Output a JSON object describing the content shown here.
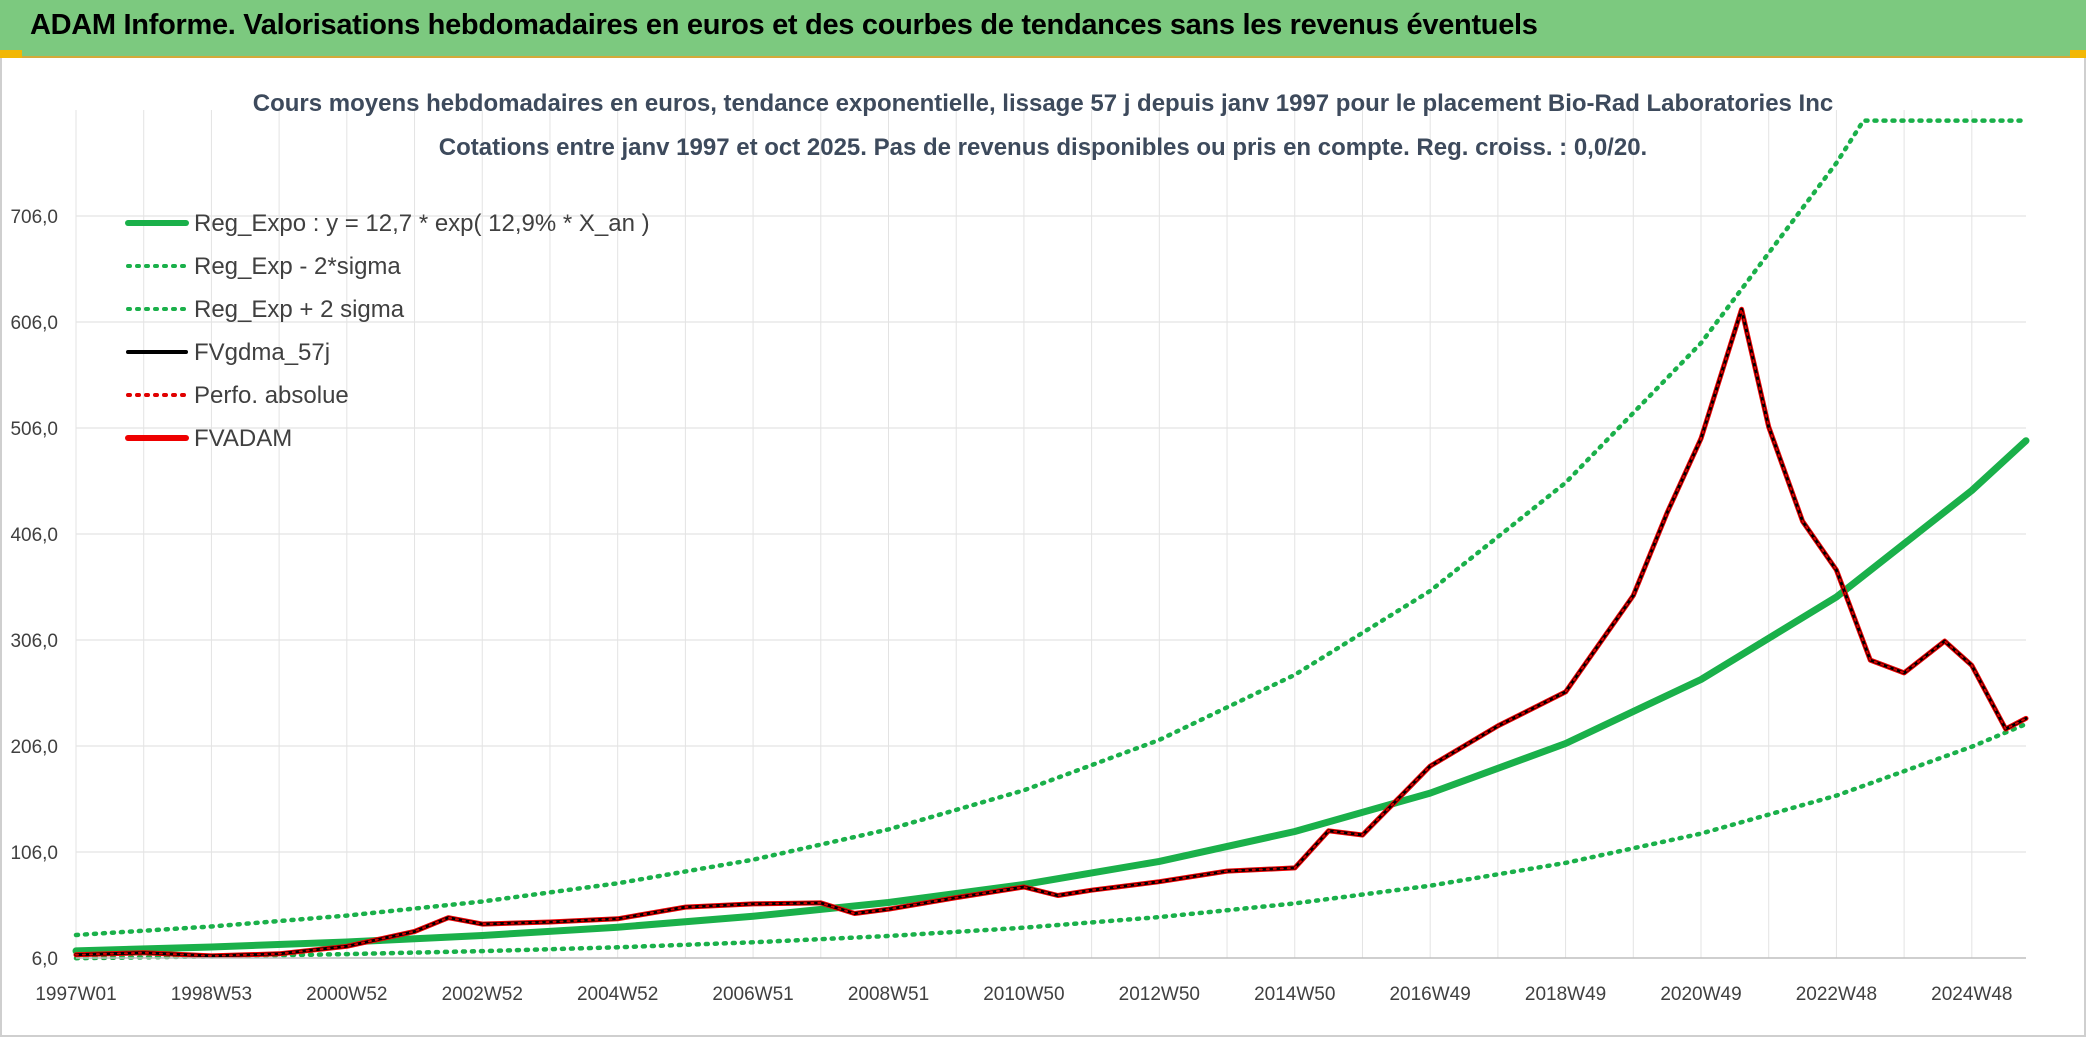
{
  "banner": {
    "title": "ADAM Informe. Valorisations hebdomadaires en euros et des courbes de tendances sans les revenus éventuels"
  },
  "chart_data": {
    "type": "line",
    "title": "Cours moyens hebdomadaires en euros, tendance exponentielle, lissage 57 j depuis janv 1997 pour le placement Bio-Rad Laboratories Inc",
    "subtitle": "Cotations entre janv 1997 et oct 2025. Pas de revenus disponibles ou pris en compte. Reg. croiss. : 0,0/20.",
    "xlabel": "",
    "ylabel": "",
    "x_range": [
      1997.0,
      2025.8
    ],
    "ylim": [
      6,
      806
    ],
    "yticks": [
      "6,0",
      "106,0",
      "206,0",
      "306,0",
      "406,0",
      "506,0",
      "606,0",
      "706,0"
    ],
    "ytick_values": [
      6,
      106,
      206,
      306,
      406,
      506,
      606,
      706
    ],
    "xticks": [
      "1997W01",
      "1998W53",
      "2000W52",
      "2002W52",
      "2004W52",
      "2006W51",
      "2008W51",
      "2010W50",
      "2012W50",
      "2014W50",
      "2016W49",
      "2018W49",
      "2020W49",
      "2022W48",
      "2024W48"
    ],
    "xtick_years": [
      1997.0,
      1999.0,
      2001.0,
      2003.0,
      2005.0,
      2007.0,
      2009.0,
      2011.0,
      2013.0,
      2015.0,
      2017.0,
      2019.0,
      2021.0,
      2023.0,
      2025.0
    ],
    "grid": true,
    "legend_position": "top-left",
    "legend": [
      {
        "label": "Reg_Expo : y = 12,7 * exp( 12,9% *  X_an )",
        "color": "#1ab04a",
        "style": "solid-thick"
      },
      {
        "label": "Reg_Exp - 2*sigma",
        "color": "#1ab04a",
        "style": "dotted"
      },
      {
        "label": "Reg_Exp + 2 sigma",
        "color": "#1ab04a",
        "style": "dotted"
      },
      {
        "label": "FVgdma_57j",
        "color": "#000000",
        "style": "solid"
      },
      {
        "label": "Perfo. absolue",
        "color": "#e00000",
        "style": "dotted"
      },
      {
        "label": "FVADAM",
        "color": "#ee0000",
        "style": "solid-thick"
      }
    ],
    "series": [
      {
        "name": "Reg_Expo",
        "color": "#1ab04a",
        "x": [
          1997.0,
          1999.0,
          2001.0,
          2003.0,
          2005.0,
          2007.0,
          2009.0,
          2011.0,
          2013.0,
          2015.0,
          2017.0,
          2019.0,
          2021.0,
          2023.0,
          2025.0,
          2025.8
        ],
        "y": [
          12.7,
          16.4,
          21.1,
          27.2,
          35.1,
          45.3,
          58.4,
          75.3,
          97.1,
          125.3,
          161.6,
          208.4,
          268.7,
          346.6,
          447.0,
          494.0
        ]
      },
      {
        "name": "Reg_Exp - 2*sigma",
        "color": "#1ab04a",
        "x": [
          1997.0,
          1999.0,
          2001.0,
          2003.0,
          2005.0,
          2007.0,
          2009.0,
          2011.0,
          2013.0,
          2015.0,
          2017.0,
          2019.0,
          2021.0,
          2023.0,
          2025.0,
          2025.8
        ],
        "y": [
          5.8,
          7.5,
          9.7,
          12.5,
          16.1,
          20.8,
          26.8,
          34.6,
          44.6,
          57.5,
          74.2,
          95.7,
          123.4,
          159.2,
          205.3,
          226.8
        ]
      },
      {
        "name": "Reg_Exp + 2 sigma",
        "color": "#1ab04a",
        "x": [
          1997.0,
          1999.0,
          2001.0,
          2003.0,
          2005.0,
          2007.0,
          2009.0,
          2011.0,
          2013.0,
          2015.0,
          2017.0,
          2019.0,
          2021.0,
          2023.0,
          2023.4,
          2025.8
        ],
        "y": [
          27.7,
          35.7,
          46.0,
          59.3,
          76.5,
          98.7,
          127.3,
          164.2,
          211.8,
          273.2,
          352.3,
          454.4,
          586.1,
          756.0,
          796.0,
          796.0
        ]
      },
      {
        "name": "FVgdma_57j",
        "color": "#000000",
        "x": [
          1997.0,
          1998.0,
          1999.0,
          2000.0,
          2001.0,
          2002.0,
          2002.5,
          2003.0,
          2004.0,
          2005.0,
          2006.0,
          2007.0,
          2008.0,
          2008.5,
          2009.0,
          2010.0,
          2011.0,
          2011.5,
          2012.0,
          2013.0,
          2014.0,
          2015.0,
          2015.5,
          2016.0,
          2017.0,
          2018.0,
          2019.0,
          2020.0,
          2020.5,
          2021.0,
          2021.6,
          2022.0,
          2022.5,
          2023.0,
          2023.5,
          2024.0,
          2024.6,
          2025.0,
          2025.5,
          2025.8
        ],
        "y": [
          9.0,
          11.0,
          8.0,
          10.0,
          17.0,
          31.0,
          44.0,
          38.0,
          40.0,
          43.0,
          54.0,
          57.0,
          58.0,
          48.0,
          52.0,
          63.0,
          73.0,
          65.0,
          70.0,
          78.0,
          88.0,
          91.0,
          126.0,
          122.0,
          187.0,
          225.0,
          257.0,
          348.0,
          426.0,
          496.0,
          618.0,
          507.0,
          418.0,
          372.0,
          287.0,
          275.0,
          305.0,
          282.0,
          222.0,
          232.0
        ]
      },
      {
        "name": "FVADAM",
        "color": "#ee0000",
        "x": [
          1997.0,
          1998.0,
          1999.0,
          2000.0,
          2001.0,
          2002.0,
          2002.5,
          2003.0,
          2004.0,
          2005.0,
          2006.0,
          2007.0,
          2008.0,
          2008.5,
          2009.0,
          2010.0,
          2011.0,
          2011.5,
          2012.0,
          2013.0,
          2014.0,
          2015.0,
          2015.5,
          2016.0,
          2017.0,
          2018.0,
          2019.0,
          2020.0,
          2020.5,
          2021.0,
          2021.6,
          2022.0,
          2022.5,
          2023.0,
          2023.5,
          2024.0,
          2024.6,
          2025.0,
          2025.5,
          2025.8
        ],
        "y": [
          9.0,
          11.0,
          8.0,
          10.0,
          17.0,
          31.0,
          44.0,
          38.0,
          40.0,
          43.0,
          54.0,
          57.0,
          58.0,
          48.0,
          52.0,
          63.0,
          73.0,
          65.0,
          70.0,
          78.0,
          88.0,
          91.0,
          126.0,
          122.0,
          187.0,
          225.0,
          257.0,
          348.0,
          426.0,
          496.0,
          618.0,
          507.0,
          418.0,
          372.0,
          287.0,
          275.0,
          305.0,
          282.0,
          222.0,
          232.0
        ]
      },
      {
        "name": "Perfo. absolue",
        "color": "#e00000",
        "x": [
          1997.0,
          1998.0,
          1999.0,
          2000.0,
          2001.0,
          2002.0,
          2002.5,
          2003.0,
          2004.0,
          2005.0,
          2006.0,
          2007.0,
          2008.0,
          2008.5,
          2009.0,
          2010.0,
          2011.0,
          2011.5,
          2012.0,
          2013.0,
          2014.0,
          2015.0,
          2015.5,
          2016.0,
          2017.0,
          2018.0,
          2019.0,
          2020.0,
          2020.5,
          2021.0,
          2021.6,
          2022.0,
          2022.5,
          2023.0,
          2023.5,
          2024.0,
          2024.6,
          2025.0,
          2025.5,
          2025.8
        ],
        "y": [
          9.0,
          11.0,
          8.0,
          10.0,
          17.0,
          31.0,
          44.0,
          38.0,
          40.0,
          43.0,
          54.0,
          57.0,
          58.0,
          48.0,
          52.0,
          63.0,
          73.0,
          65.0,
          70.0,
          78.0,
          88.0,
          91.0,
          126.0,
          122.0,
          187.0,
          225.0,
          257.0,
          348.0,
          426.0,
          496.0,
          618.0,
          507.0,
          418.0,
          372.0,
          287.0,
          275.0,
          305.0,
          282.0,
          222.0,
          232.0
        ]
      }
    ]
  }
}
